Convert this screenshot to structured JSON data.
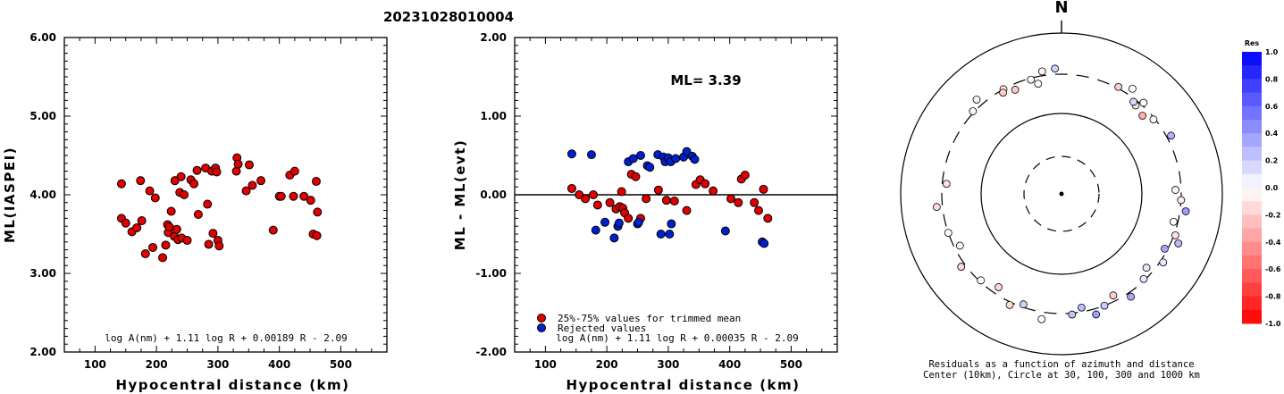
{
  "title": "20231028010004",
  "chart_data": [
    {
      "id": "ml-vs-distance",
      "type": "scatter",
      "xlabel": "Hypocentral distance (km)",
      "ylabel": "ML(IASPEI)",
      "xlim": [
        50,
        575
      ],
      "ylim": [
        2.0,
        6.0
      ],
      "xticks": [
        100,
        200,
        300,
        400,
        500
      ],
      "yticks": [
        "2.00",
        "3.00",
        "4.00",
        "5.00",
        "6.00"
      ],
      "formula": "log A(nm) + 1.11 log R + 0.00189 R - 2.09",
      "marker_color": "#e00000",
      "points": [
        [
          143,
          4.14
        ],
        [
          143,
          3.7
        ],
        [
          150,
          3.64
        ],
        [
          160,
          3.53
        ],
        [
          168,
          3.58
        ],
        [
          174,
          4.18
        ],
        [
          176,
          3.67
        ],
        [
          182,
          3.25
        ],
        [
          189,
          4.05
        ],
        [
          194,
          3.33
        ],
        [
          198,
          3.96
        ],
        [
          210,
          3.2
        ],
        [
          215,
          3.36
        ],
        [
          218,
          3.62
        ],
        [
          219,
          3.52
        ],
        [
          221,
          3.59
        ],
        [
          224,
          3.79
        ],
        [
          229,
          3.47
        ],
        [
          230,
          4.18
        ],
        [
          233,
          3.56
        ],
        [
          235,
          3.43
        ],
        [
          238,
          4.03
        ],
        [
          240,
          4.23
        ],
        [
          241,
          3.45
        ],
        [
          245,
          4.0
        ],
        [
          250,
          3.42
        ],
        [
          256,
          4.19
        ],
        [
          261,
          4.14
        ],
        [
          266,
          4.31
        ],
        [
          268,
          3.75
        ],
        [
          280,
          4.34
        ],
        [
          283,
          3.88
        ],
        [
          285,
          3.37
        ],
        [
          290,
          4.3
        ],
        [
          292,
          3.51
        ],
        [
          296,
          4.34
        ],
        [
          298,
          4.29
        ],
        [
          300,
          3.42
        ],
        [
          302,
          3.35
        ],
        [
          330,
          4.3
        ],
        [
          331,
          4.47
        ],
        [
          333,
          4.39
        ],
        [
          346,
          4.05
        ],
        [
          351,
          4.38
        ],
        [
          356,
          4.12
        ],
        [
          370,
          4.18
        ],
        [
          390,
          3.55
        ],
        [
          400,
          3.98
        ],
        [
          403,
          3.98
        ],
        [
          417,
          4.25
        ],
        [
          423,
          3.98
        ],
        [
          425,
          4.3
        ],
        [
          440,
          3.98
        ],
        [
          451,
          3.93
        ],
        [
          455,
          3.5
        ],
        [
          460,
          4.17
        ],
        [
          461,
          3.48
        ],
        [
          462,
          3.78
        ]
      ]
    },
    {
      "id": "residual-vs-distance",
      "type": "scatter",
      "xlabel": "Hypocentral distance (km)",
      "ylabel": "ML - ML(evt)",
      "xlim": [
        50,
        575
      ],
      "ylim": [
        -2.0,
        2.0
      ],
      "xticks": [
        100,
        200,
        300,
        400,
        500
      ],
      "yticks": [
        "-2.00",
        "-1.00",
        "0.00",
        "1.00",
        "2.00"
      ],
      "ml_label": "ML= 3.39",
      "legend": [
        {
          "label": "25%-75% values for trimmed mean",
          "color": "#e00000"
        },
        {
          "label": "Rejected values",
          "color": "#0020d0"
        }
      ],
      "formula": "log A(nm) + 1.11 log R + 0.00035 R - 2.09",
      "series": [
        {
          "name": "25%-75% values for trimmed mean",
          "color": "#e00000",
          "points": [
            [
              143,
              0.08
            ],
            [
              155,
              0.0
            ],
            [
              165,
              -0.05
            ],
            [
              178,
              0.0
            ],
            [
              185,
              -0.13
            ],
            [
              205,
              -0.1
            ],
            [
              215,
              -0.18
            ],
            [
              221,
              -0.15
            ],
            [
              224,
              0.04
            ],
            [
              226,
              -0.17
            ],
            [
              229,
              -0.23
            ],
            [
              235,
              -0.3
            ],
            [
              240,
              0.26
            ],
            [
              247,
              0.23
            ],
            [
              255,
              -0.3
            ],
            [
              264,
              -0.05
            ],
            [
              284,
              0.06
            ],
            [
              297,
              -0.07
            ],
            [
              310,
              -0.08
            ],
            [
              330,
              -0.2
            ],
            [
              345,
              0.13
            ],
            [
              352,
              0.19
            ],
            [
              360,
              0.14
            ],
            [
              373,
              0.05
            ],
            [
              402,
              -0.05
            ],
            [
              414,
              -0.1
            ],
            [
              419,
              0.2
            ],
            [
              425,
              0.25
            ],
            [
              440,
              -0.1
            ],
            [
              447,
              -0.2
            ],
            [
              455,
              0.07
            ],
            [
              462,
              -0.3
            ]
          ]
        },
        {
          "name": "Rejected values",
          "color": "#0020d0",
          "points": [
            [
              143,
              0.52
            ],
            [
              175,
              0.51
            ],
            [
              182,
              -0.45
            ],
            [
              197,
              -0.35
            ],
            [
              212,
              -0.55
            ],
            [
              218,
              -0.4
            ],
            [
              220,
              -0.36
            ],
            [
              235,
              0.42
            ],
            [
              243,
              0.46
            ],
            [
              250,
              -0.37
            ],
            [
              252,
              -0.35
            ],
            [
              255,
              0.5
            ],
            [
              266,
              0.37
            ],
            [
              270,
              0.35
            ],
            [
              283,
              0.51
            ],
            [
              288,
              -0.5
            ],
            [
              292,
              0.48
            ],
            [
              295,
              0.42
            ],
            [
              300,
              0.47
            ],
            [
              302,
              -0.5
            ],
            [
              304,
              0.42
            ],
            [
              305,
              -0.37
            ],
            [
              312,
              0.46
            ],
            [
              325,
              0.48
            ],
            [
              330,
              0.55
            ],
            [
              339,
              0.49
            ],
            [
              343,
              0.45
            ],
            [
              393,
              -0.46
            ],
            [
              453,
              -0.6
            ],
            [
              456,
              -0.62
            ]
          ]
        }
      ]
    },
    {
      "id": "residual-polar",
      "type": "scatter",
      "subtype": "polar",
      "north_label": "N",
      "caption_line1": "Residuals as a function of azimuth and distance",
      "caption_line2": "Center (10km), Circle at 30, 100, 300 and 1000 km",
      "colorbar": {
        "title": "Res",
        "ticks": [
          "1.0",
          "0.8",
          "0.6",
          "0.4",
          "0.2",
          "0.0",
          "-0.2",
          "-0.4",
          "-0.6",
          "-0.8",
          "-1.0"
        ],
        "positive_color": "#0000ff",
        "negative_color": "#ff0000"
      },
      "stations": [
        [
          0,
          348,
          0.0
        ],
        [
          1,
          345,
          0.02
        ],
        [
          2,
          351,
          -0.05
        ],
        [
          3,
          336,
          -0.21
        ],
        [
          4,
          331,
          -0.08
        ],
        [
          5,
          357,
          0.18
        ],
        [
          6,
          40,
          -0.12
        ],
        [
          7,
          28,
          -0.2
        ],
        [
          8,
          34,
          0.0
        ],
        [
          9,
          38,
          0.15
        ],
        [
          10,
          42,
          0.0
        ],
        [
          11,
          46,
          -0.32
        ],
        [
          12,
          51,
          -0.05
        ],
        [
          13,
          62,
          0.31
        ],
        [
          14,
          88,
          -0.03
        ],
        [
          15,
          93,
          -0.07
        ],
        [
          16,
          98,
          0.38
        ],
        [
          17,
          104,
          0.0
        ],
        [
          18,
          110,
          -0.12
        ],
        [
          19,
          113,
          0.28
        ],
        [
          20,
          118,
          0.35
        ],
        [
          21,
          124,
          0.1
        ],
        [
          22,
          131,
          0.1
        ],
        [
          23,
          136,
          0.1
        ],
        [
          24,
          146,
          0.34
        ],
        [
          25,
          153,
          -0.2
        ],
        [
          26,
          159,
          0.2
        ],
        [
          27,
          164,
          0.38
        ],
        [
          28,
          170,
          0.26
        ],
        [
          29,
          175,
          0.24
        ],
        [
          30,
          189,
          0.0
        ],
        [
          31,
          199,
          0.18
        ],
        [
          32,
          205,
          -0.15
        ],
        [
          33,
          214,
          -0.16
        ],
        [
          34,
          223,
          0.0
        ],
        [
          35,
          234,
          -0.17
        ],
        [
          36,
          243,
          -0.04
        ],
        [
          37,
          251,
          0.0
        ],
        [
          38,
          264,
          -0.14
        ],
        [
          39,
          275,
          -0.12
        ],
        [
          40,
          313,
          0.03
        ],
        [
          41,
          318,
          -0.06
        ],
        [
          42,
          330,
          -0.2
        ]
      ]
    }
  ]
}
